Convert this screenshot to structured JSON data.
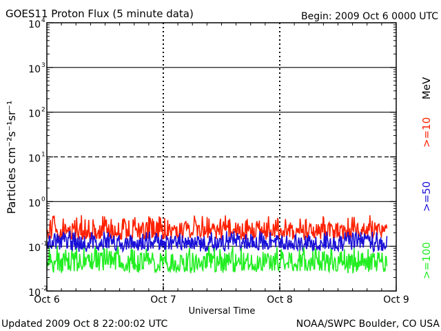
{
  "header": {
    "title": "GOES11 Proton Flux (5 minute data)",
    "begin": "Begin: 2009 Oct 6 0000 UTC"
  },
  "footer": {
    "updated": "Updated 2009 Oct  8 22:00:02 UTC",
    "credit": "NOAA/SWPC Boulder, CO USA"
  },
  "axes": {
    "ylabel": "Particles cm⁻²s⁻¹sr⁻¹",
    "xlabel": "Universal Time",
    "unit_label": "MeV"
  },
  "chart_data": {
    "type": "line",
    "y_scale": "log",
    "ylim": [
      0.01,
      10000
    ],
    "y_ticks": [
      {
        "base": "10",
        "exp": "-2",
        "value": 0.01
      },
      {
        "base": "10",
        "exp": "-1",
        "value": 0.1
      },
      {
        "base": "10",
        "exp": "0",
        "value": 1
      },
      {
        "base": "10",
        "exp": "1",
        "value": 10
      },
      {
        "base": "10",
        "exp": "2",
        "value": 100
      },
      {
        "base": "10",
        "exp": "3",
        "value": 1000
      },
      {
        "base": "10",
        "exp": "4",
        "value": 10000
      }
    ],
    "x_ticks": [
      "Oct 6",
      "Oct 7",
      "Oct 8",
      "Oct 9"
    ],
    "xlim_days": [
      0,
      3
    ],
    "data_end_day": 2.92,
    "grid": {
      "solid": [
        1,
        100,
        1000
      ],
      "dashed": [
        10
      ],
      "threshold": 0.1
    },
    "series": [
      {
        "name": ">=10",
        "color": "#ff2000",
        "low": 0.14,
        "high": 0.5,
        "typical": 0.22
      },
      {
        "name": ">=50",
        "color": "#1a10d8",
        "low": 0.075,
        "high": 0.22,
        "typical": 0.12
      },
      {
        "name": ">=100",
        "color": "#22ee22",
        "low": 0.025,
        "high": 0.1,
        "typical": 0.045
      }
    ]
  }
}
